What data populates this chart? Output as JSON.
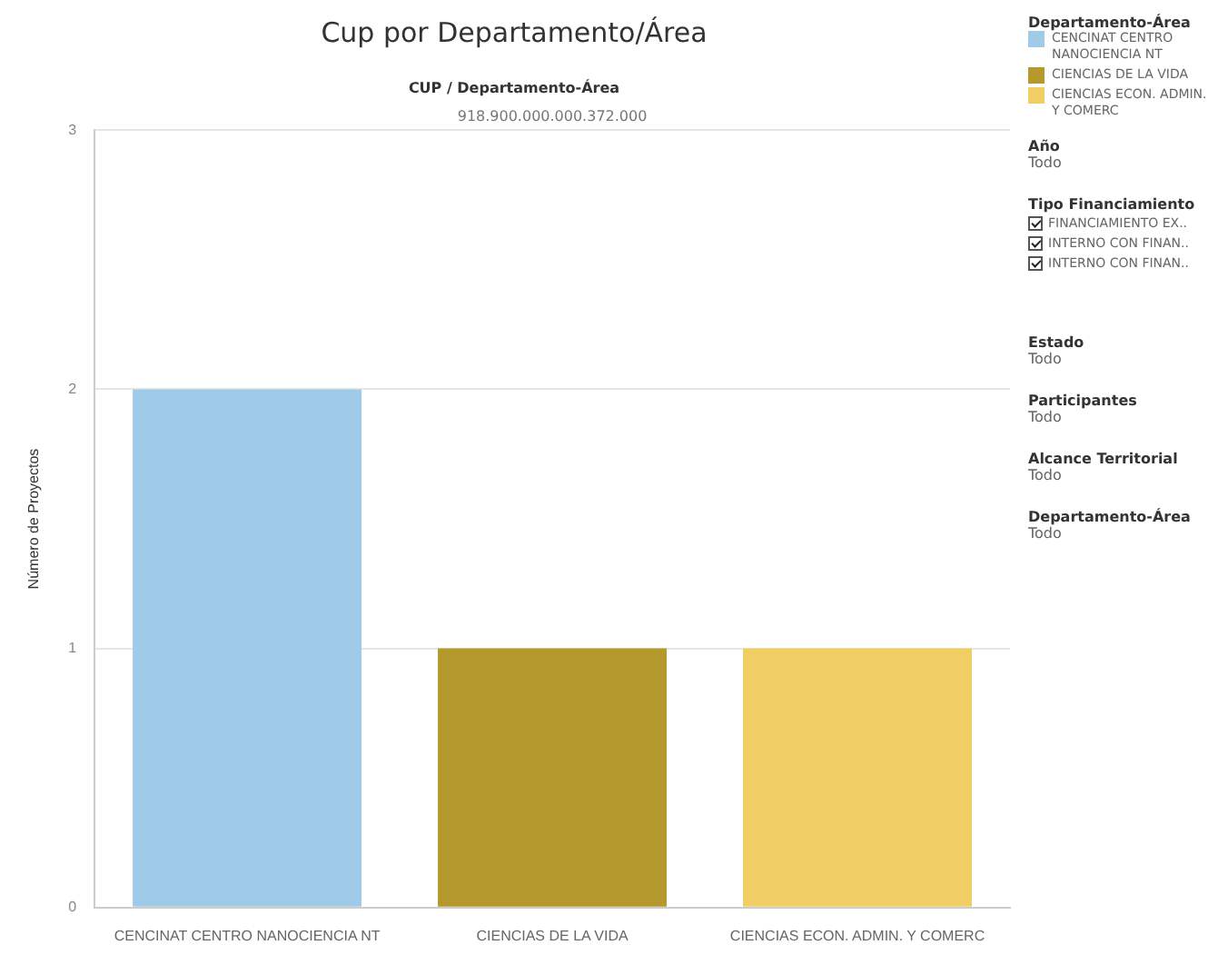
{
  "chart_data": {
    "type": "bar",
    "title": "Cup por Departamento/Área",
    "subtitle": "CUP / Departamento-Área",
    "ylabel": "Número de Proyectos",
    "legend_title": "Departamento-Área",
    "categories": [
      "CENCINAT CENTRO NANOCIENCIA NT",
      "CIENCIAS DE LA VIDA",
      "CIENCIAS ECON. ADMIN. Y COMERC"
    ],
    "series": [
      {
        "name": "CENCINAT CENTRO NANOCIENCIA NT",
        "color": "#a0cbe8",
        "values": [
          2,
          null,
          null
        ]
      },
      {
        "name": "CIENCIAS DE LA VIDA",
        "color": "#b6992d",
        "values": [
          null,
          1,
          null
        ]
      },
      {
        "name": "CIENCIAS ECON. ADMIN. Y COMERC",
        "color": "#f1ce63",
        "values": [
          null,
          null,
          1
        ]
      }
    ],
    "ylim": [
      0,
      3
    ],
    "yticks": [
      0,
      1,
      2,
      3
    ],
    "grid": "y",
    "legend": "top right",
    "annotations": [
      "918.900.000.000.372.000",
      "Año",
      "Todo",
      "Tipo Financiamiento",
      "FINANCIAMIENTO EX..",
      "INTERNO CON FINAN..",
      "INTERNO CON FINAN..",
      "Estado",
      "Todo",
      "Participantes",
      "Todo",
      "Alcance Territorial",
      "Todo",
      "Departamento-Área",
      "Todo"
    ]
  }
}
